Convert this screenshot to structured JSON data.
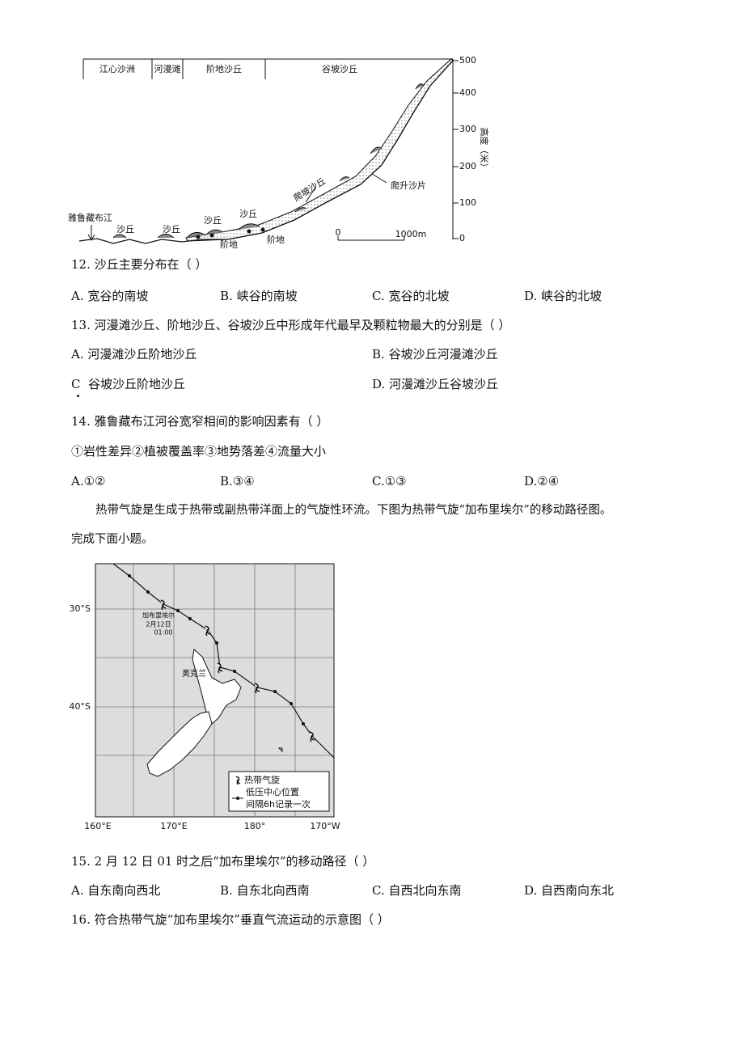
{
  "figure1": {
    "zones": [
      "江心沙洲",
      "河漫滩",
      "阶地沙丘",
      "谷坡沙丘"
    ],
    "yticks": [
      "500",
      "400",
      "300",
      "200",
      "100",
      "0"
    ],
    "y_axis_label": "高度（米）",
    "river": "雅鲁藏布江",
    "dunes": [
      "沙丘",
      "沙丘",
      "沙丘",
      "沙丘"
    ],
    "terraces": [
      "阶地",
      "阶地"
    ],
    "climbing_dune": "爬坡沙丘",
    "climbing_sheet": "爬升沙片",
    "scale": [
      "0",
      "1000m"
    ]
  },
  "q12": {
    "stem": "12. 沙丘主要分布在（    ）",
    "options": [
      {
        "label": "A.",
        "text": "宽谷的南坡"
      },
      {
        "label": "B.",
        "text": "峡谷的南坡"
      },
      {
        "label": "C.",
        "text": "宽谷的北坡"
      },
      {
        "label": "D.",
        "text": "峡谷的北坡"
      }
    ]
  },
  "q13": {
    "stem": "13. 河漫滩沙丘、阶地沙丘、谷坡沙丘中形成年代最早及颗粒物最大的分别是（    ）",
    "options": [
      {
        "label": "A.",
        "text": "河漫滩沙丘阶地沙丘"
      },
      {
        "label": "B.",
        "text": "谷坡沙丘河漫滩沙丘"
      },
      {
        "label": "C",
        "text": "谷坡沙丘阶地沙丘"
      },
      {
        "label": "D.",
        "text": "河漫滩沙丘谷坡沙丘"
      }
    ]
  },
  "q14": {
    "stem": "14. 雅鲁藏布江河谷宽窄相间的影响因素有（    ）",
    "items": "①岩性差异②植被覆盖率③地势落差④流量大小",
    "options": [
      {
        "label": "A.",
        "text": "①②"
      },
      {
        "label": "B.",
        "text": "③④"
      },
      {
        "label": "C.",
        "text": "①③"
      },
      {
        "label": "D.",
        "text": "②④"
      }
    ]
  },
  "intro": [
    "热带气旋是生成于热带或副热带洋面上的气旋性环流。下图为热带气旋“加布里埃尔”的移动路径图。",
    "完成下面小题。"
  ],
  "figure2": {
    "lat_labels": [
      "30°S",
      "40°S"
    ],
    "lon_labels": [
      "160°E",
      "170°E",
      "180°",
      "170°W"
    ],
    "cyclone": [
      "加布里埃尔",
      "2月12日",
      "01:00"
    ],
    "city": "奥克兰",
    "legend": [
      "热带气旋",
      "低压中心位置",
      "间隔6h记录一次"
    ]
  },
  "q15": {
    "stem": "15. 2 月 12 日 01 时之后“加布里埃尔”的移动路径（    ）",
    "options": [
      {
        "label": "A.",
        "text": "自东南向西北"
      },
      {
        "label": "B.",
        "text": "自东北向西南"
      },
      {
        "label": "C.",
        "text": "自西北向东南"
      },
      {
        "label": "D.",
        "text": "自西南向东北"
      }
    ]
  },
  "q16": {
    "stem": "16. 符合热带气旋“加布里埃尔”垂直气流运动的示意图（    ）"
  }
}
